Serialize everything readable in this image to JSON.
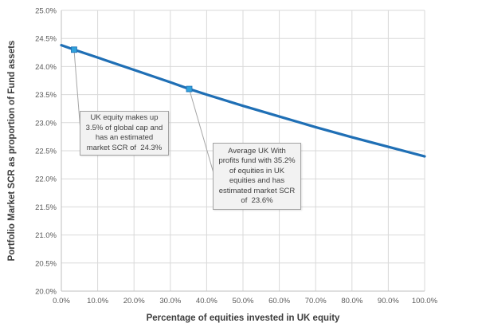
{
  "colors": {
    "line": "#1F6FB5",
    "marker": "#31A2DC",
    "grid": "#D9D9D9",
    "axis_line": "#BFBFBF",
    "tick_text": "#595959",
    "title_text": "#3D3D3D",
    "callout_bg": "#F2F2F2",
    "callout_border": "#A3A3A3",
    "callout_text": "#404040",
    "leader": "#A6A6A6"
  },
  "chart_data": {
    "type": "line",
    "title": "",
    "xlabel": "Percentage of equities invested in UK equity",
    "ylabel": "Portfolio Market SCR as proportion of Fund assets",
    "xlim": [
      0,
      100
    ],
    "ylim": [
      20,
      25
    ],
    "grid": true,
    "legend": "none",
    "x_ticks": {
      "values": [
        0,
        10,
        20,
        30,
        40,
        50,
        60,
        70,
        80,
        90,
        100
      ],
      "labels": [
        "0.0%",
        "10.0%",
        "20.0%",
        "30.0%",
        "40.0%",
        "50.0%",
        "60.0%",
        "70.0%",
        "80.0%",
        "90.0%",
        "100.0%"
      ]
    },
    "y_ticks": {
      "values": [
        25.0,
        24.5,
        24.0,
        23.5,
        23.0,
        22.5,
        22.0,
        21.5,
        21.0,
        20.5,
        20.0
      ],
      "labels": [
        "25.0%",
        "24.5%",
        "24.0%",
        "23.5%",
        "23.0%",
        "22.5%",
        "22.0%",
        "21.5%",
        "21.0%",
        "20.5%",
        "20.0%"
      ]
    },
    "series": [
      {
        "name": "Portfolio Market SCR",
        "color": "#1F6FB5",
        "x": [
          0,
          3.5,
          10,
          20,
          30,
          35.2,
          40,
          50,
          60,
          70,
          80,
          90,
          100
        ],
        "y": [
          24.38,
          24.3,
          24.16,
          23.94,
          23.72,
          23.6,
          23.5,
          23.3,
          23.11,
          22.92,
          22.74,
          22.57,
          22.4
        ]
      }
    ],
    "markers": [
      {
        "x": 3.5,
        "y": 24.3,
        "color": "#31A2DC"
      },
      {
        "x": 35.2,
        "y": 23.6,
        "color": "#31A2DC"
      }
    ],
    "annotations": [
      {
        "anchor": {
          "x": 3.5,
          "y": 24.3
        },
        "lines": [
          "UK equity makes up",
          "3.5% of global cap and",
          "has an estimated",
          "market SCR of  24.3%"
        ]
      },
      {
        "anchor": {
          "x": 35.2,
          "y": 23.6
        },
        "lines": [
          "Average UK With",
          "profits fund with 35.2%",
          "of equities in UK",
          "equities and has",
          "estimated market SCR",
          "of  23.6%"
        ]
      }
    ]
  }
}
